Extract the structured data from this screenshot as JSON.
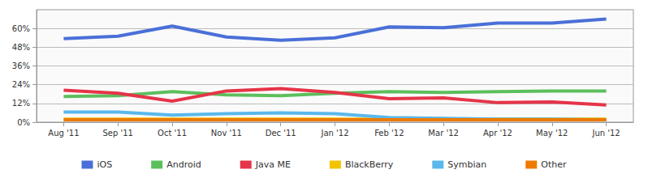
{
  "chart_data": {
    "type": "line",
    "categories": [
      "Aug '11",
      "Sep '11",
      "Oct '11",
      "Nov '11",
      "Dec '11",
      "Jan '12",
      "Feb '12",
      "Mar '12",
      "Apr '12",
      "May '12",
      "Jun '12"
    ],
    "series": [
      {
        "name": "iOS",
        "color": "#4a6fd8",
        "values": [
          53.5,
          55,
          61.5,
          54.5,
          52.5,
          54,
          61,
          60.5,
          63.5,
          63.5,
          66
        ]
      },
      {
        "name": "Android",
        "color": "#5cbf5c",
        "values": [
          16.5,
          17,
          19.5,
          17.5,
          17,
          18.5,
          19.5,
          19,
          19.5,
          20,
          20
        ]
      },
      {
        "name": "Java ME",
        "color": "#e63448",
        "values": [
          20.5,
          18.5,
          13.5,
          20,
          21.5,
          19,
          15,
          15.5,
          12.5,
          13,
          11
        ]
      },
      {
        "name": "BlackBerry",
        "color": "#f5c400",
        "values": [
          2,
          2,
          2,
          2,
          2,
          2,
          2,
          2,
          2,
          2,
          2
        ]
      },
      {
        "name": "Symbian",
        "color": "#5ab8ec",
        "values": [
          6.5,
          6.5,
          4.5,
          5.5,
          6,
          5.5,
          3,
          2.5,
          2,
          2,
          1.5
        ]
      },
      {
        "name": "Other",
        "color": "#ee7a00",
        "values": [
          1.5,
          1.5,
          1.5,
          1.5,
          1.5,
          1.5,
          1.5,
          1.5,
          1.5,
          1.5,
          1.5
        ]
      }
    ],
    "ylim": [
      0,
      72
    ],
    "yticks": [
      {
        "value": 0,
        "label": "0%"
      },
      {
        "value": 12,
        "label": "12%"
      },
      {
        "value": 24,
        "label": "24%"
      },
      {
        "value": 36,
        "label": "36%"
      },
      {
        "value": 48,
        "label": "48%"
      },
      {
        "value": 60,
        "label": "60%"
      }
    ],
    "grid": true,
    "legend": "bottom"
  }
}
